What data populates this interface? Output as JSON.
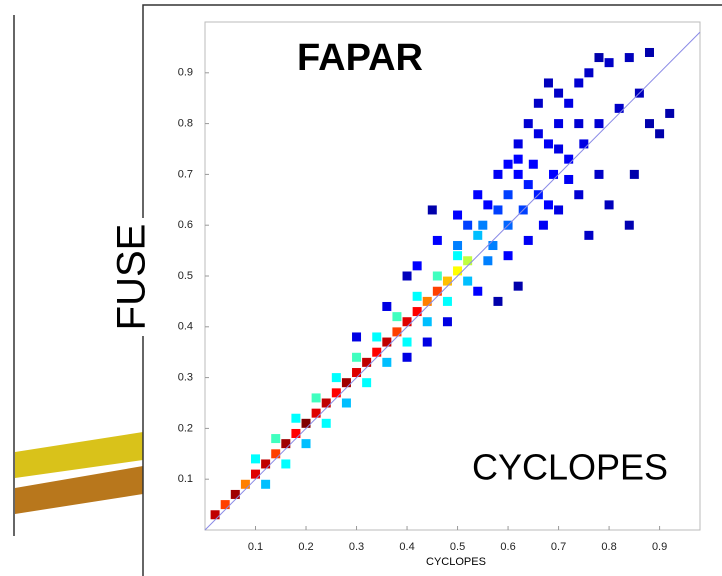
{
  "chart_data": {
    "type": "scatter",
    "title": "FAPAR",
    "y_label": "FUSE",
    "x_label": "CYCLOPES",
    "annotation": "CYCLOPES",
    "xlim": [
      0,
      0.98
    ],
    "ylim": [
      0,
      1.0
    ],
    "xticks": [
      0.1,
      0.2,
      0.3,
      0.4,
      0.5,
      0.6,
      0.7,
      0.8,
      0.9
    ],
    "yticks": [
      0.1,
      0.2,
      0.3,
      0.4,
      0.5,
      0.6,
      0.7,
      0.8,
      0.9
    ],
    "reference_line_color": "#8a8ae6",
    "colorscale": [
      "#00008f",
      "#0000ff",
      "#00ffff",
      "#ffff00",
      "#ff0000",
      "#800000"
    ],
    "x": [
      0.02,
      0.04,
      0.06,
      0.08,
      0.1,
      0.12,
      0.14,
      0.16,
      0.18,
      0.2,
      0.22,
      0.24,
      0.26,
      0.28,
      0.3,
      0.32,
      0.34,
      0.36,
      0.38,
      0.4,
      0.42,
      0.44,
      0.46,
      0.48,
      0.5,
      0.52,
      0.1,
      0.14,
      0.18,
      0.22,
      0.26,
      0.3,
      0.34,
      0.38,
      0.42,
      0.46,
      0.5,
      0.54,
      0.12,
      0.16,
      0.2,
      0.24,
      0.28,
      0.32,
      0.36,
      0.4,
      0.44,
      0.48,
      0.52,
      0.56,
      0.3,
      0.36,
      0.42,
      0.46,
      0.5,
      0.4,
      0.44,
      0.48,
      0.54,
      0.55,
      0.58,
      0.6,
      0.62,
      0.65,
      0.68,
      0.7,
      0.72,
      0.74,
      0.76,
      0.8,
      0.84,
      0.57,
      0.6,
      0.63,
      0.66,
      0.69,
      0.72,
      0.75,
      0.78,
      0.82,
      0.86,
      0.6,
      0.64,
      0.67,
      0.7,
      0.74,
      0.78,
      0.8,
      0.84,
      0.76,
      0.56,
      0.58,
      0.62,
      0.64,
      0.66,
      0.68,
      0.7,
      0.52,
      0.54,
      0.5,
      0.62,
      0.66,
      0.7,
      0.74,
      0.72,
      0.68,
      0.64,
      0.6,
      0.88,
      0.9,
      0.92,
      0.45,
      0.4,
      0.85,
      0.58,
      0.62,
      0.78,
      0.88
    ],
    "y": [
      0.03,
      0.05,
      0.07,
      0.09,
      0.11,
      0.13,
      0.15,
      0.17,
      0.19,
      0.21,
      0.23,
      0.25,
      0.27,
      0.29,
      0.31,
      0.33,
      0.35,
      0.37,
      0.39,
      0.41,
      0.43,
      0.45,
      0.47,
      0.49,
      0.51,
      0.53,
      0.14,
      0.18,
      0.22,
      0.26,
      0.3,
      0.34,
      0.38,
      0.42,
      0.46,
      0.5,
      0.54,
      0.58,
      0.09,
      0.13,
      0.17,
      0.21,
      0.25,
      0.29,
      0.33,
      0.37,
      0.41,
      0.45,
      0.49,
      0.53,
      0.38,
      0.44,
      0.52,
      0.57,
      0.62,
      0.34,
      0.37,
      0.41,
      0.47,
      0.6,
      0.63,
      0.66,
      0.7,
      0.72,
      0.76,
      0.8,
      0.84,
      0.88,
      0.9,
      0.92,
      0.93,
      0.56,
      0.6,
      0.63,
      0.66,
      0.7,
      0.73,
      0.76,
      0.8,
      0.83,
      0.86,
      0.54,
      0.57,
      0.6,
      0.63,
      0.66,
      0.7,
      0.64,
      0.6,
      0.58,
      0.64,
      0.7,
      0.76,
      0.8,
      0.84,
      0.88,
      0.86,
      0.6,
      0.66,
      0.56,
      0.73,
      0.78,
      0.75,
      0.8,
      0.69,
      0.64,
      0.68,
      0.72,
      0.8,
      0.78,
      0.82,
      0.63,
      0.5,
      0.7,
      0.45,
      0.48,
      0.93,
      0.94
    ],
    "density": [
      0.9,
      0.75,
      0.95,
      0.7,
      0.85,
      0.9,
      0.75,
      0.95,
      0.8,
      1.0,
      0.85,
      0.9,
      0.8,
      0.95,
      0.85,
      0.9,
      0.8,
      0.9,
      0.75,
      0.85,
      0.8,
      0.7,
      0.75,
      0.65,
      0.6,
      0.55,
      0.4,
      0.45,
      0.4,
      0.45,
      0.4,
      0.45,
      0.4,
      0.45,
      0.4,
      0.45,
      0.4,
      0.35,
      0.35,
      0.4,
      0.35,
      0.4,
      0.35,
      0.4,
      0.35,
      0.4,
      0.35,
      0.4,
      0.35,
      0.3,
      0.15,
      0.15,
      0.2,
      0.2,
      0.2,
      0.15,
      0.15,
      0.15,
      0.2,
      0.3,
      0.25,
      0.25,
      0.2,
      0.2,
      0.18,
      0.15,
      0.15,
      0.12,
      0.1,
      0.1,
      0.08,
      0.3,
      0.28,
      0.25,
      0.22,
      0.2,
      0.18,
      0.15,
      0.12,
      0.1,
      0.08,
      0.2,
      0.18,
      0.18,
      0.15,
      0.12,
      0.1,
      0.08,
      0.06,
      0.1,
      0.2,
      0.18,
      0.15,
      0.12,
      0.1,
      0.08,
      0.1,
      0.25,
      0.2,
      0.3,
      0.2,
      0.15,
      0.15,
      0.12,
      0.18,
      0.2,
      0.22,
      0.2,
      0.05,
      0.05,
      0.05,
      0.05,
      0.08,
      0.05,
      0.05,
      0.05,
      0.05,
      0.05
    ]
  }
}
